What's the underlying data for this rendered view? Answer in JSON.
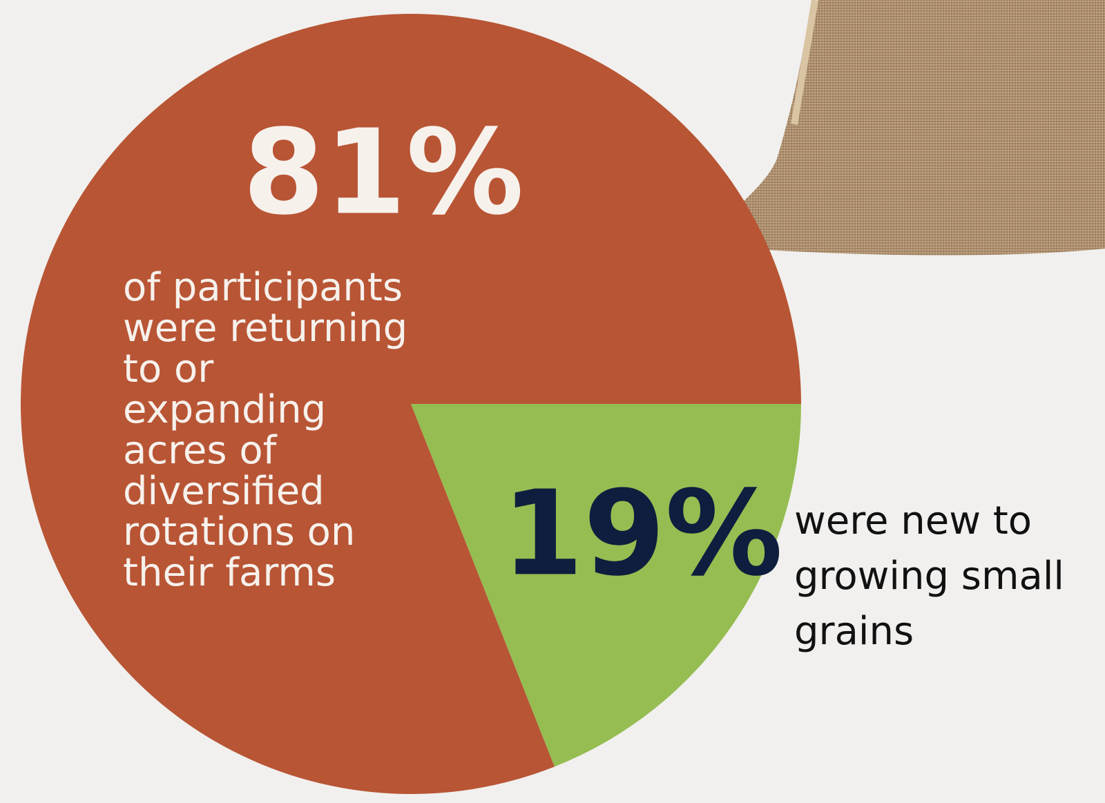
{
  "chart_data": {
    "type": "pie",
    "values": [
      81,
      19
    ],
    "value_labels": [
      "81%",
      "19%"
    ],
    "colors": [
      "#b85535",
      "#95bd52"
    ],
    "descriptions": [
      [
        "of participants",
        "were returning",
        "to or",
        "expanding",
        "acres of",
        "diversified",
        "rotations on",
        "their farms"
      ],
      [
        "were new to",
        "growing small",
        "grains"
      ]
    ]
  }
}
